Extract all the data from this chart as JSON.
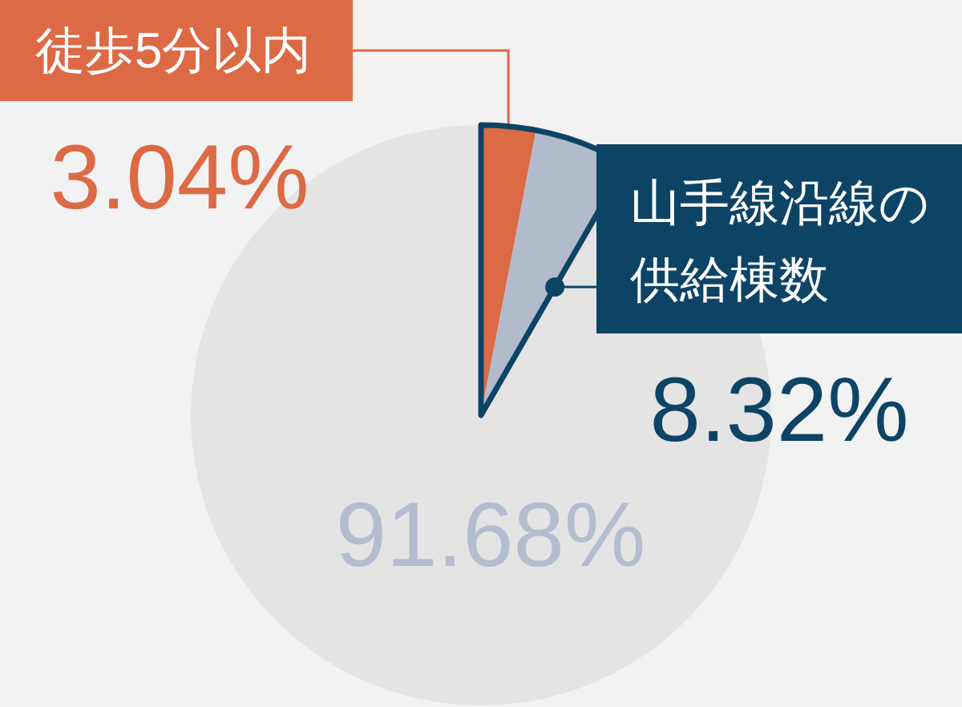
{
  "chart_data": {
    "type": "pie",
    "categories": [
      "徒歩5分以内",
      null,
      null
    ],
    "values": [
      3.04,
      5.28,
      91.68
    ],
    "colors": [
      "#dc6a45",
      "#b1bbcc",
      "#e4e4e4"
    ],
    "value_labels": [
      "3.04%",
      null,
      "91.68%"
    ],
    "annotations": [
      "山手線沿線の供給棟数",
      "8.32%"
    ]
  }
}
